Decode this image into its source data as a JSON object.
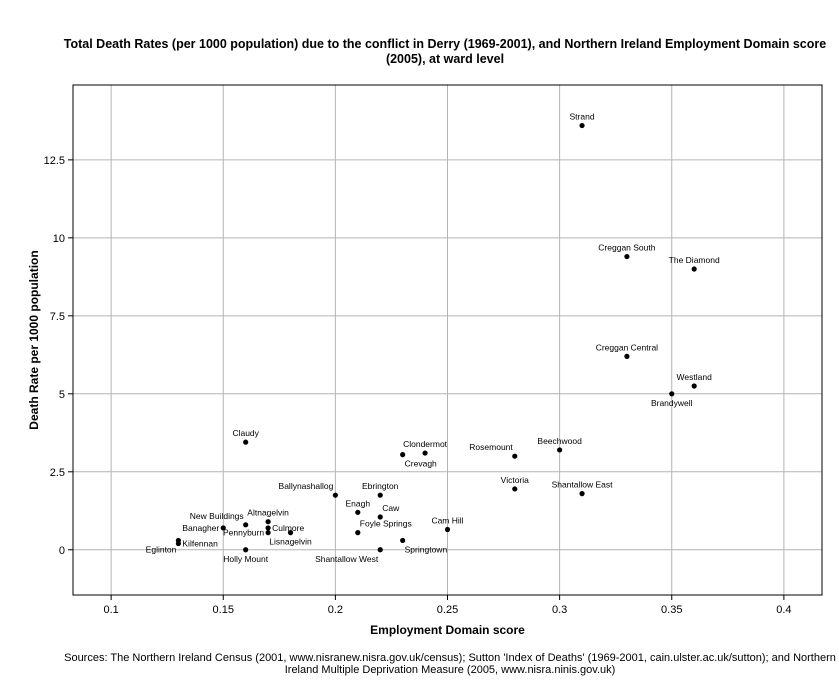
{
  "chart_data": {
    "type": "scatter",
    "title": "Total Death Rates (per 1000 population) due to the conflict in Derry (1969-2001), and Northern Ireland Employment Domain score (2005), at ward level",
    "xlabel": "Employment Domain score",
    "ylabel": "Death Rate per 1000 population",
    "xlim": [
      0.083,
      0.417
    ],
    "ylim": [
      -1.45,
      14.9
    ],
    "xticks": [
      0.1,
      0.15,
      0.2,
      0.25,
      0.3,
      0.35,
      0.4
    ],
    "xtick_labels": [
      "0.1",
      "0.15",
      "0.2",
      "0.25",
      "0.3",
      "0.35",
      "0.4"
    ],
    "yticks": [
      0,
      2.5,
      5,
      7.5,
      10,
      12.5
    ],
    "ytick_labels": [
      "0",
      "2.5",
      "5",
      "7.5",
      "10",
      "12.5"
    ],
    "grid": true,
    "points": [
      {
        "label": "Strand",
        "x": 0.31,
        "y": 13.6,
        "pos": "above"
      },
      {
        "label": "Creggan South",
        "x": 0.33,
        "y": 9.4,
        "pos": "above"
      },
      {
        "label": "The Diamond",
        "x": 0.36,
        "y": 9.0,
        "pos": "above"
      },
      {
        "label": "Creggan Central",
        "x": 0.33,
        "y": 6.2,
        "pos": "above"
      },
      {
        "label": "Westland",
        "x": 0.36,
        "y": 5.25,
        "pos": "above"
      },
      {
        "label": "Brandywell",
        "x": 0.35,
        "y": 5.0,
        "pos": "below"
      },
      {
        "label": "Claudy",
        "x": 0.16,
        "y": 3.45,
        "pos": "above"
      },
      {
        "label": "Clondermot",
        "x": 0.24,
        "y": 3.1,
        "pos": "above"
      },
      {
        "label": "Crevagh",
        "x": 0.23,
        "y": 3.05,
        "pos": "below-right"
      },
      {
        "label": "Rosemount",
        "x": 0.28,
        "y": 3.0,
        "pos": "above-left"
      },
      {
        "label": "Beechwood",
        "x": 0.3,
        "y": 3.2,
        "pos": "above"
      },
      {
        "label": "Victoria",
        "x": 0.28,
        "y": 1.95,
        "pos": "above"
      },
      {
        "label": "Shantallow East",
        "x": 0.31,
        "y": 1.8,
        "pos": "above"
      },
      {
        "label": "Ebrington",
        "x": 0.22,
        "y": 1.75,
        "pos": "above"
      },
      {
        "label": "Ballynashallog",
        "x": 0.2,
        "y": 1.75,
        "pos": "above-left"
      },
      {
        "label": "Enagh",
        "x": 0.21,
        "y": 1.2,
        "pos": "above"
      },
      {
        "label": "Caw",
        "x": 0.22,
        "y": 1.05,
        "pos": "above-right"
      },
      {
        "label": "Altnagelvin",
        "x": 0.17,
        "y": 0.9,
        "pos": "above"
      },
      {
        "label": "New Buildings",
        "x": 0.16,
        "y": 0.8,
        "pos": "above-left"
      },
      {
        "label": "Culmore",
        "x": 0.17,
        "y": 0.7,
        "pos": "right"
      },
      {
        "label": "Foyle Springs",
        "x": 0.21,
        "y": 0.55,
        "pos": "above-right"
      },
      {
        "label": "Pennyburn",
        "x": 0.17,
        "y": 0.55,
        "pos": "left"
      },
      {
        "label": "Lisnagelvin",
        "x": 0.18,
        "y": 0.55,
        "pos": "below"
      },
      {
        "label": "Cam Hill",
        "x": 0.25,
        "y": 0.65,
        "pos": "above"
      },
      {
        "label": "Banagher",
        "x": 0.15,
        "y": 0.7,
        "pos": "left"
      },
      {
        "label": "Springtown",
        "x": 0.23,
        "y": 0.3,
        "pos": "below-right"
      },
      {
        "label": "Eglinton",
        "x": 0.13,
        "y": 0.3,
        "pos": "below-left"
      },
      {
        "label": "Kilfennan",
        "x": 0.13,
        "y": 0.2,
        "pos": "right"
      },
      {
        "label": "Holly Mount",
        "x": 0.16,
        "y": 0.0,
        "pos": "below"
      },
      {
        "label": "Shantallow West",
        "x": 0.22,
        "y": 0.0,
        "pos": "below-left"
      }
    ]
  },
  "source_text": "Sources: The Northern Ireland Census (2001, www.nisranew.nisra.gov.uk/census); Sutton 'Index of Deaths' (1969-2001, cain.ulster.ac.uk/sutton); and Northern Ireland Multiple Deprivation Measure (2005, www.nisra.ninis.gov.uk)"
}
